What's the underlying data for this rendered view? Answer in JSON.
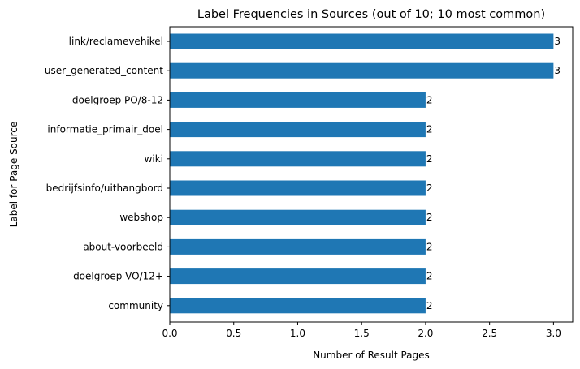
{
  "chart_data": {
    "type": "bar",
    "orientation": "horizontal",
    "title": "Label Frequencies in Sources (out of 10; 10 most common)",
    "xlabel": "Number of Result Pages",
    "ylabel": "Label for Page Source",
    "categories": [
      "link/reclamevehikel",
      "user_generated_content",
      "doelgroep PO/8-12",
      "informatie_primair_doel",
      "wiki",
      "bedrijfsinfo/uithangbord",
      "webshop",
      "about-voorbeeld",
      "doelgroep VO/12+",
      "community"
    ],
    "values": [
      3,
      3,
      2,
      2,
      2,
      2,
      2,
      2,
      2,
      2
    ],
    "data_labels": [
      "3",
      "3",
      "2",
      "2",
      "2",
      "2",
      "2",
      "2",
      "2",
      "2"
    ],
    "xlim": [
      0,
      3.15
    ],
    "xticks": [
      0,
      0.5,
      1,
      1.5,
      2,
      2.5,
      3
    ],
    "xtick_labels": [
      "0.0",
      "0.5",
      "1.0",
      "1.5",
      "2.0",
      "2.5",
      "3.0"
    ],
    "grid": false,
    "legend": "none",
    "bar_color": "#1f77b4",
    "axis_color": "#000000"
  }
}
